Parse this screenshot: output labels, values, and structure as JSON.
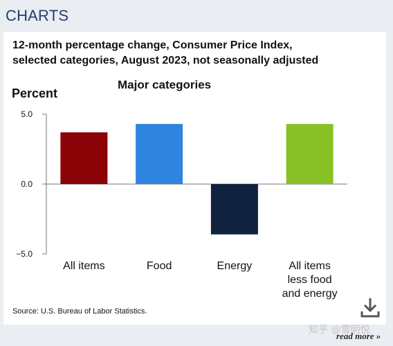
{
  "header": {
    "title": "CHARTS"
  },
  "card": {
    "subtitle_line1": "12-month percentage change, Consumer Price Index,",
    "subtitle_line2": "selected categories, August 2023, not seasonally adjusted",
    "source": "Source: U.S. Bureau of Labor Statistics."
  },
  "chart_data": {
    "type": "bar",
    "title": "Major categories",
    "ylabel": "Percent",
    "xlabel": "",
    "categories": [
      [
        "All items"
      ],
      [
        "Food"
      ],
      [
        "Energy"
      ],
      [
        "All items",
        "less food",
        "and energy"
      ]
    ],
    "values": [
      3.7,
      4.3,
      -3.6,
      4.3
    ],
    "colors": [
      "#8b0306",
      "#2f84df",
      "#10223d",
      "#88c126"
    ],
    "ylim": [
      -5.0,
      5.0
    ],
    "yticks": [
      -5.0,
      0.0,
      5.0
    ],
    "ytick_labels": [
      "−5.0",
      "0.0",
      "5.0"
    ],
    "grid": false,
    "legend": "none"
  },
  "footer": {
    "watermark": "知乎 @雪明悦",
    "read_more": "read more »"
  },
  "icons": {
    "download": "download-icon"
  }
}
